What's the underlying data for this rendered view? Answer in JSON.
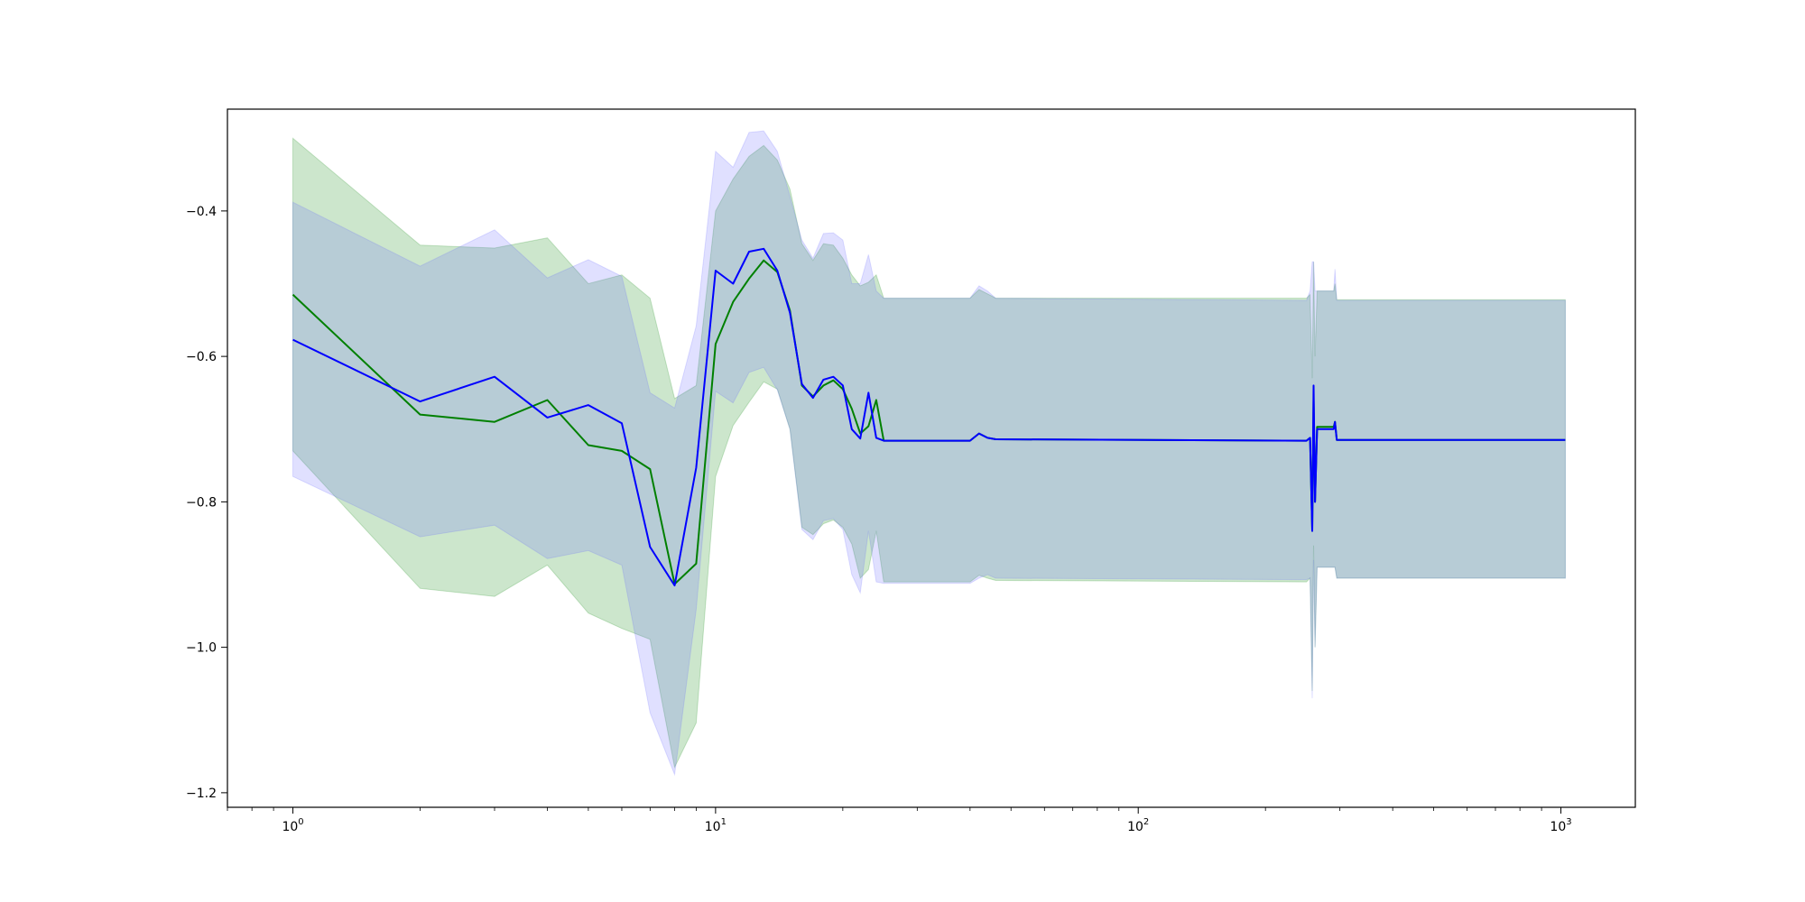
{
  "chart_data": {
    "type": "line",
    "title": "",
    "xlabel": "",
    "ylabel": "",
    "xscale": "log",
    "xlim": [
      0.7,
      1500
    ],
    "ylim": [
      -1.22,
      -0.26
    ],
    "grid": false,
    "legend": "none",
    "x_ticks": [
      {
        "value": 1,
        "base": "10",
        "exp": "0"
      },
      {
        "value": 10,
        "base": "10",
        "exp": "1"
      },
      {
        "value": 100,
        "base": "10",
        "exp": "2"
      },
      {
        "value": 1000,
        "base": "10",
        "exp": "3"
      }
    ],
    "y_ticks": [
      {
        "value": -0.4,
        "label": "−0.4"
      },
      {
        "value": -0.6,
        "label": "−0.6"
      },
      {
        "value": -0.8,
        "label": "−0.8"
      },
      {
        "value": -1.0,
        "label": "−1.0"
      },
      {
        "value": -1.2,
        "label": "−1.2"
      }
    ],
    "series": [
      {
        "color": "#008000",
        "band_color": "#008000",
        "x": [
          1,
          2,
          3,
          4,
          5,
          6,
          7,
          8,
          9,
          10,
          11,
          12,
          13,
          14,
          15,
          16,
          17,
          18,
          19,
          20,
          21,
          22,
          23,
          24,
          25,
          40,
          42,
          44,
          46,
          250,
          255,
          258,
          260,
          262,
          265,
          270,
          280,
          290,
          292,
          295,
          1024
        ],
        "y": [
          -0.515,
          -0.68,
          -0.69,
          -0.66,
          -0.722,
          -0.73,
          -0.755,
          -0.913,
          -0.885,
          -0.583,
          -0.525,
          -0.493,
          -0.468,
          -0.484,
          -0.537,
          -0.64,
          -0.655,
          -0.64,
          -0.633,
          -0.645,
          -0.672,
          -0.706,
          -0.696,
          -0.66,
          -0.716,
          -0.716,
          -0.706,
          -0.712,
          -0.714,
          -0.716,
          -0.712,
          -0.84,
          -0.66,
          -0.8,
          -0.697,
          -0.697,
          -0.697,
          -0.697,
          -0.69,
          -0.715,
          -0.715
        ],
        "upper": [
          -0.3,
          -0.447,
          -0.451,
          -0.437,
          -0.5,
          -0.488,
          -0.52,
          -0.658,
          -0.64,
          -0.4,
          -0.356,
          -0.325,
          -0.31,
          -0.33,
          -0.37,
          -0.445,
          -0.468,
          -0.445,
          -0.447,
          -0.465,
          -0.488,
          -0.503,
          -0.498,
          -0.488,
          -0.52,
          -0.52,
          -0.508,
          -0.514,
          -0.52,
          -0.52,
          -0.515,
          -0.63,
          -0.47,
          -0.6,
          -0.51,
          -0.51,
          -0.51,
          -0.51,
          -0.5,
          -0.522,
          -0.522
        ],
        "lower": [
          -0.73,
          -0.919,
          -0.93,
          -0.887,
          -0.953,
          -0.974,
          -0.989,
          -1.165,
          -1.104,
          -0.765,
          -0.695,
          -0.663,
          -0.635,
          -0.645,
          -0.7,
          -0.835,
          -0.845,
          -0.83,
          -0.825,
          -0.835,
          -0.858,
          -0.905,
          -0.893,
          -0.84,
          -0.91,
          -0.91,
          -0.901,
          -0.905,
          -0.908,
          -0.91,
          -0.905,
          -1.06,
          -0.86,
          -1.0,
          -0.89,
          -0.89,
          -0.89,
          -0.89,
          -0.89,
          -0.905,
          -0.905
        ]
      },
      {
        "color": "#0000ff",
        "band_color": "#6666ff",
        "x": [
          1,
          2,
          3,
          4,
          5,
          6,
          7,
          8,
          9,
          10,
          11,
          12,
          13,
          14,
          15,
          16,
          17,
          18,
          19,
          20,
          21,
          22,
          23,
          24,
          25,
          40,
          42,
          44,
          46,
          250,
          255,
          258,
          260,
          262,
          265,
          270,
          280,
          290,
          292,
          295,
          1024
        ],
        "y": [
          -0.577,
          -0.662,
          -0.628,
          -0.684,
          -0.667,
          -0.692,
          -0.862,
          -0.915,
          -0.753,
          -0.482,
          -0.5,
          -0.456,
          -0.452,
          -0.482,
          -0.54,
          -0.638,
          -0.657,
          -0.632,
          -0.628,
          -0.64,
          -0.7,
          -0.713,
          -0.65,
          -0.712,
          -0.716,
          -0.716,
          -0.706,
          -0.712,
          -0.714,
          -0.716,
          -0.712,
          -0.84,
          -0.64,
          -0.8,
          -0.7,
          -0.7,
          -0.7,
          -0.7,
          -0.69,
          -0.715,
          -0.715
        ],
        "upper": [
          -0.388,
          -0.476,
          -0.426,
          -0.492,
          -0.467,
          -0.49,
          -0.65,
          -0.671,
          -0.558,
          -0.318,
          -0.34,
          -0.292,
          -0.29,
          -0.318,
          -0.38,
          -0.44,
          -0.465,
          -0.431,
          -0.43,
          -0.44,
          -0.5,
          -0.5,
          -0.46,
          -0.51,
          -0.52,
          -0.52,
          -0.503,
          -0.51,
          -0.52,
          -0.523,
          -0.51,
          -0.47,
          -0.47,
          -0.51,
          -0.51,
          -0.51,
          -0.51,
          -0.51,
          -0.48,
          -0.523,
          -0.523
        ],
        "lower": [
          -0.765,
          -0.848,
          -0.832,
          -0.878,
          -0.867,
          -0.887,
          -1.09,
          -1.175,
          -0.948,
          -0.648,
          -0.664,
          -0.622,
          -0.615,
          -0.646,
          -0.7,
          -0.838,
          -0.852,
          -0.826,
          -0.823,
          -0.838,
          -0.9,
          -0.925,
          -0.84,
          -0.91,
          -0.912,
          -0.912,
          -0.905,
          -0.9,
          -0.905,
          -0.907,
          -0.905,
          -1.07,
          -0.88,
          -1.0,
          -0.89,
          -0.89,
          -0.89,
          -0.89,
          -0.89,
          -0.905,
          -0.905
        ]
      }
    ]
  }
}
